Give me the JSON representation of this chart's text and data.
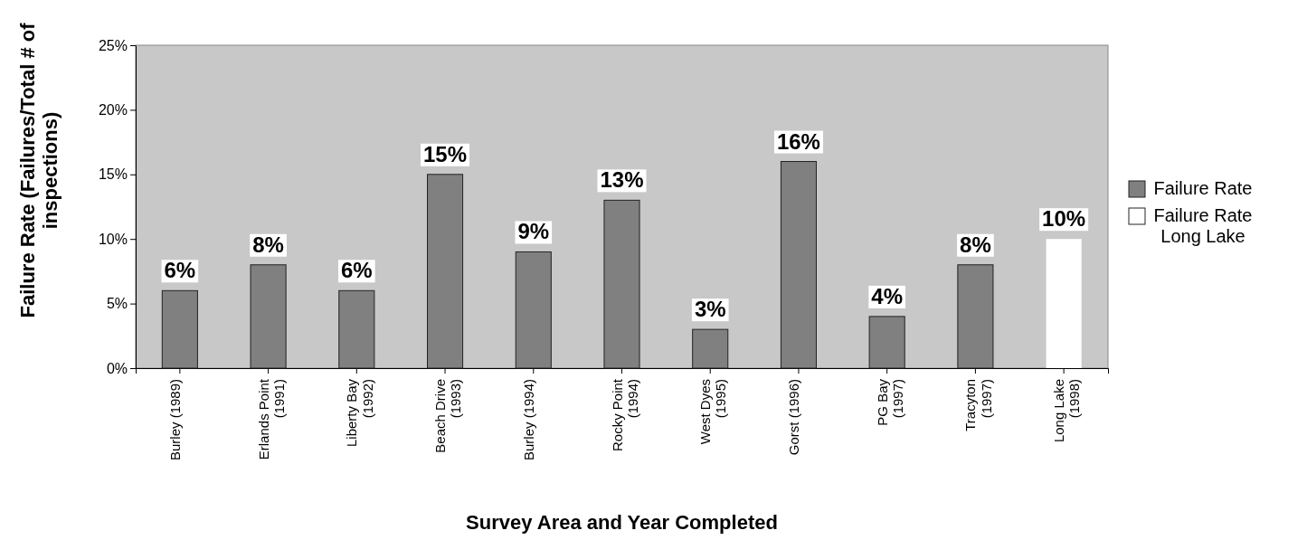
{
  "chart_data": {
    "type": "bar",
    "xlabel": "Survey Area and Year Completed",
    "ylabel": "Failure Rate (Failures/Total # of inspections)",
    "categories": [
      "Burley (1989)",
      "Erlands Point (1991)",
      "Liberty Bay (1992)",
      "Beach Drive (1993)",
      "Burley (1994)",
      "Rocky Point (1994)",
      "West Dyes (1995)",
      "Gorst (1996)",
      "PG Bay (1997)",
      "Tracyton (1997)",
      "Long Lake (1998)"
    ],
    "series": [
      {
        "name": "Failure Rate",
        "color": "#808080",
        "values": [
          6,
          8,
          6,
          15,
          9,
          13,
          3,
          16,
          4,
          8,
          null
        ],
        "value_labels": [
          "6%",
          "8%",
          "6%",
          "15%",
          "9%",
          "13%",
          "3%",
          "16%",
          "4%",
          "8%",
          null
        ]
      },
      {
        "name": "Failure Rate Long Lake",
        "color": "#ffffff",
        "values": [
          null,
          null,
          null,
          null,
          null,
          null,
          null,
          null,
          null,
          null,
          10
        ],
        "value_labels": [
          null,
          null,
          null,
          null,
          null,
          null,
          null,
          null,
          null,
          null,
          "10%"
        ]
      }
    ],
    "ylim": [
      0,
      25
    ],
    "yticks": [
      {
        "value": 0,
        "label": "0%"
      },
      {
        "value": 5,
        "label": "5%"
      },
      {
        "value": 10,
        "label": "10%"
      },
      {
        "value": 15,
        "label": "15%"
      },
      {
        "value": 20,
        "label": "20%"
      },
      {
        "value": 25,
        "label": "25%"
      }
    ],
    "grid": false,
    "legend": "right"
  }
}
